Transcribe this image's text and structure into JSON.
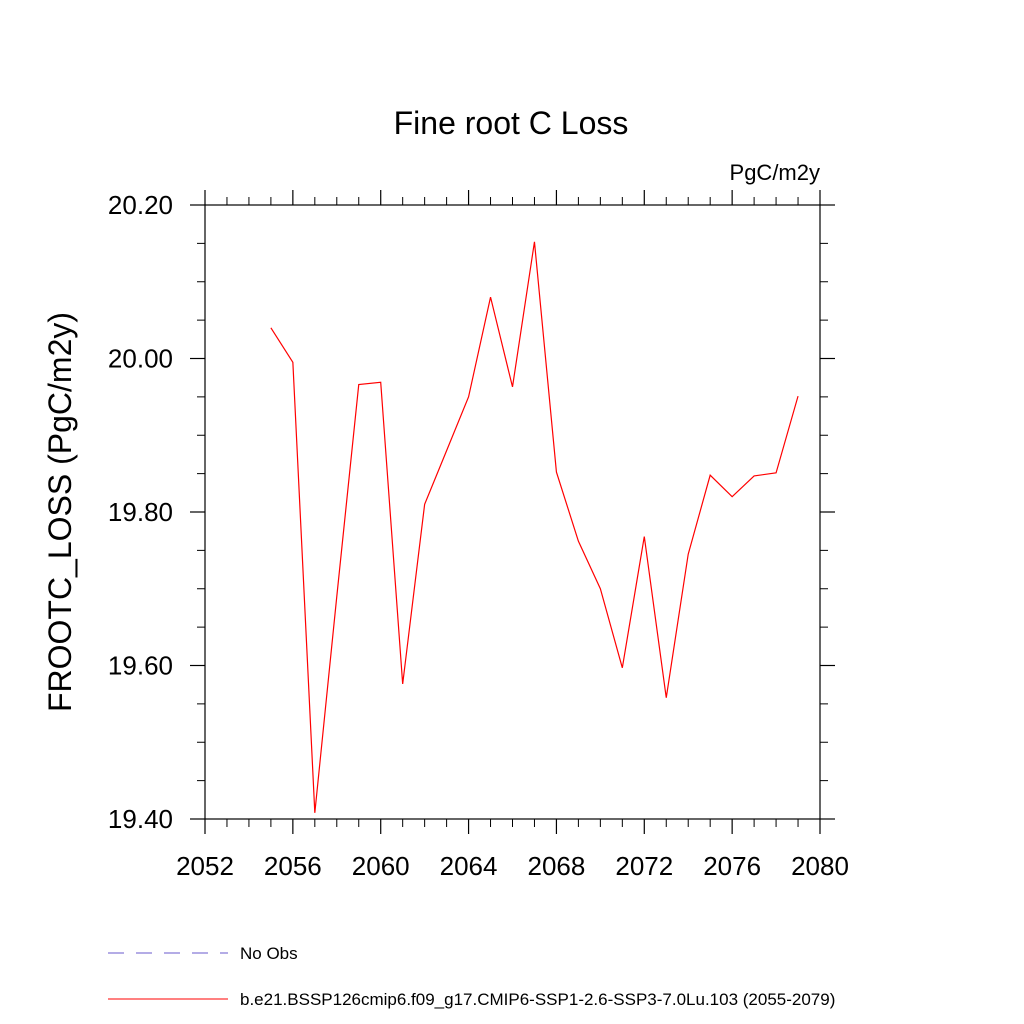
{
  "chart_data": {
    "type": "line",
    "title": "Fine root C Loss",
    "units_label": "PgC/m2y",
    "xlabel": "",
    "ylabel": "FROOTC_LOSS  (PgC/m2y)",
    "xlim": [
      2052,
      2080
    ],
    "ylim": [
      19.4,
      20.2
    ],
    "x_ticks": [
      2052,
      2056,
      2060,
      2064,
      2068,
      2072,
      2076,
      2080
    ],
    "x_tick_labels": [
      "2052",
      "2056",
      "2060",
      "2064",
      "2068",
      "2072",
      "2076",
      "2080"
    ],
    "y_ticks": [
      19.4,
      19.6,
      19.8,
      20.0,
      20.2
    ],
    "y_tick_labels": [
      "19.40",
      "19.60",
      "19.80",
      "20.00",
      "20.20"
    ],
    "x_minor_step": 1,
    "y_minor_step": 0.05,
    "grid": false,
    "legend_position": "bottom-left",
    "series": [
      {
        "name": "b.e21.BSSP126cmip6.f09_g17.CMIP6-SSP1-2.6-SSP3-7.0Lu.103 (2055-2079)",
        "color": "#ff0000",
        "dash": "solid",
        "x": [
          2055,
          2056,
          2057,
          2058,
          2059,
          2060,
          2061,
          2062,
          2063,
          2064,
          2065,
          2066,
          2067,
          2068,
          2069,
          2070,
          2071,
          2072,
          2073,
          2074,
          2075,
          2076,
          2077,
          2078,
          2079
        ],
        "y": [
          20.04,
          19.995,
          19.408,
          19.69,
          19.966,
          19.969,
          19.576,
          19.81,
          19.88,
          19.95,
          20.08,
          19.963,
          20.152,
          19.852,
          19.762,
          19.7,
          19.597,
          19.768,
          19.558,
          19.745,
          19.848,
          19.82,
          19.847,
          19.851,
          19.951
        ]
      }
    ],
    "legend": [
      {
        "label": "No Obs",
        "color": "#6a5acd",
        "dash": "dashed"
      },
      {
        "label": "b.e21.BSSP126cmip6.f09_g17.CMIP6-SSP1-2.6-SSP3-7.0Lu.103 (2055-2079)",
        "color": "#ff0000",
        "dash": "solid"
      }
    ]
  }
}
